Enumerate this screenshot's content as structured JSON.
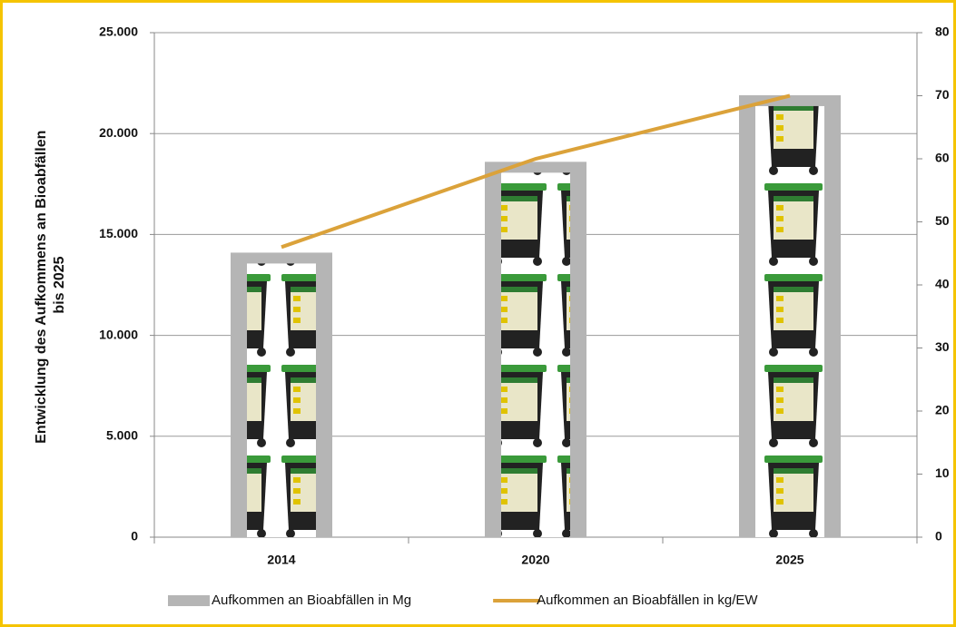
{
  "chart_data": {
    "type": "bar",
    "y_label": [
      "Entwicklung des Aufkommens an Bioabfällen",
      "bis 2025"
    ],
    "categories": [
      "2014",
      "2020",
      "2025"
    ],
    "series": [
      {
        "name": "Aufkommen an Bioabfällen in Mg",
        "type": "bar",
        "color": "#b5b5b5",
        "values": [
          14100,
          18600,
          21900
        ]
      },
      {
        "name": "Aufkommen an Bioabfällen in kg/EW",
        "type": "line",
        "color": "#dba23a",
        "axis": "y2",
        "values": [
          46,
          60,
          70
        ]
      }
    ],
    "ylim": [
      0,
      25000
    ],
    "yticks": [
      0,
      {
        "value": 5000,
        "label": "5.000"
      },
      {
        "value": 10000,
        "label": "10.000"
      },
      {
        "value": 15000,
        "label": "15.000"
      },
      {
        "value": 20000,
        "label": "20.000"
      },
      {
        "value": 25000,
        "label": "25.000"
      }
    ],
    "y2lim": [
      0,
      80
    ],
    "y2ticks": [
      0,
      10,
      20,
      30,
      40,
      50,
      60,
      70,
      80
    ],
    "grid": true,
    "legend": "bottom"
  }
}
